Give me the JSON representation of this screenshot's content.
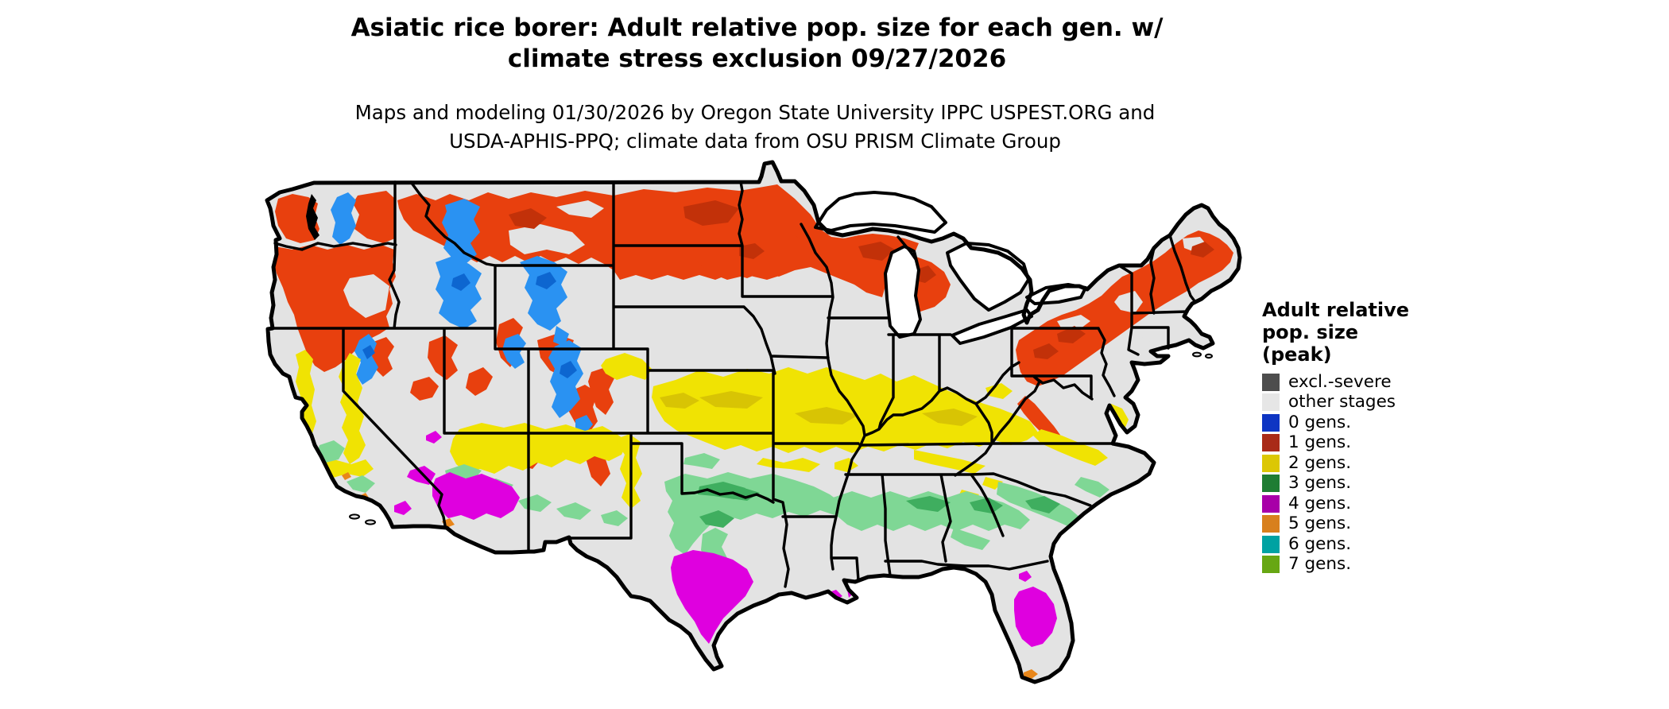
{
  "title": {
    "line1": "Asiatic rice borer: Adult relative pop. size for each gen. w/",
    "line2": "climate stress exclusion 09/27/2026"
  },
  "subtitle": {
    "line1": "Maps and modeling 01/30/2026 by Oregon State University IPPC USPEST.ORG and",
    "line2": "USDA-APHIS-PPQ; climate data from OSU PRISM Climate Group"
  },
  "legend": {
    "title_line1": "Adult relative",
    "title_line2": "pop. size",
    "title_line3": "(peak)",
    "items": [
      {
        "label": "excl.-severe",
        "color": "#4d4d4d"
      },
      {
        "label": "other stages",
        "color": "#e6e6e6"
      },
      {
        "label": "0 gens.",
        "color": "#0e35c3"
      },
      {
        "label": "1 gens.",
        "color": "#a92a18"
      },
      {
        "label": "2 gens.",
        "color": "#dcc705"
      },
      {
        "label": "3 gens.",
        "color": "#1f7d33"
      },
      {
        "label": "4 gens.",
        "color": "#a800a8"
      },
      {
        "label": "5 gens.",
        "color": "#d8801d"
      },
      {
        "label": "6 gens.",
        "color": "#00a2a2"
      },
      {
        "label": "7 gens.",
        "color": "#67a713"
      }
    ]
  },
  "map": {
    "palette": {
      "base": "#e3e3e3",
      "border": "#000000",
      "water": "#ffffff",
      "red": "#e8400e",
      "red_dark": "#c23109",
      "blue": "#2a92f2",
      "blue_dark": "#0d66d0",
      "yellow": "#f0e303",
      "yellow_dark": "#d8c404",
      "green_light": "#7fd795",
      "green_mid": "#3fae5f",
      "magenta": "#df00df",
      "orange": "#e8861a"
    }
  }
}
